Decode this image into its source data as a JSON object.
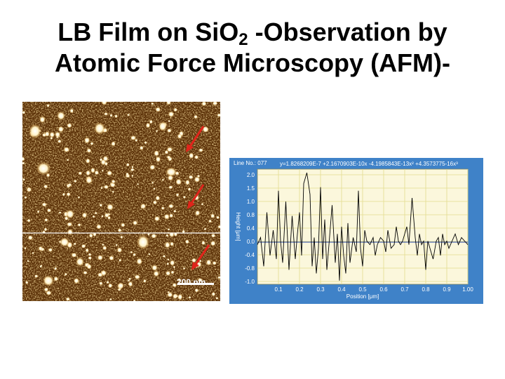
{
  "title": {
    "line1_pre": "LB Film on SiO",
    "line1_sub": "2",
    "line1_post": " -Observation by",
    "line2": "Atomic Force Microscopy (AFM)-"
  },
  "afm_image": {
    "scale_bar_label": "200 nm",
    "arrow_color": "#e0241b"
  },
  "chart_data": {
    "type": "line",
    "title": "Line No.: 077",
    "fit_equation": "y=1.8268209E-7 +2.1670903E-10x -4.1985843E-13x² +4.3573775-16x³",
    "xlabel": "Position [μm]",
    "ylabel": "Height [μm]",
    "xlim": [
      0.0,
      1.0
    ],
    "ylim": [
      -1.0,
      2.2
    ],
    "x_ticks": [
      "0.1",
      "0.2",
      "0.3",
      "0.4",
      "0.5",
      "0.6",
      "0.7",
      "0.8",
      "0.9",
      "1.00"
    ],
    "y_ticks": [
      "2.0",
      "1.5",
      "1.0",
      "0.8",
      "0.4",
      "0.0",
      "-0.4",
      "-0.8",
      "-1.0"
    ],
    "series": [
      {
        "values_x": [
          0.0,
          0.015,
          0.03,
          0.045,
          0.06,
          0.075,
          0.09,
          0.1,
          0.11,
          0.12,
          0.135,
          0.15,
          0.165,
          0.18,
          0.19,
          0.2,
          0.21,
          0.22,
          0.235,
          0.25,
          0.26,
          0.27,
          0.28,
          0.29,
          0.3,
          0.31,
          0.32,
          0.33,
          0.34,
          0.355,
          0.37,
          0.38,
          0.39,
          0.4,
          0.41,
          0.42,
          0.43,
          0.44,
          0.455,
          0.47,
          0.48,
          0.49,
          0.5,
          0.51,
          0.52,
          0.535,
          0.55,
          0.56,
          0.57,
          0.585,
          0.6,
          0.61,
          0.62,
          0.635,
          0.65,
          0.66,
          0.67,
          0.68,
          0.69,
          0.7,
          0.71,
          0.72,
          0.735,
          0.75,
          0.76,
          0.77,
          0.78,
          0.79,
          0.8,
          0.81,
          0.82,
          0.835,
          0.85,
          0.86,
          0.87,
          0.88,
          0.89,
          0.9,
          0.91,
          0.925,
          0.94,
          0.955,
          0.97,
          0.985,
          1.0
        ],
        "values_y": [
          0.1,
          0.3,
          -0.5,
          1.0,
          -0.2,
          0.5,
          -0.3,
          1.6,
          0.2,
          -0.4,
          1.3,
          -0.6,
          0.9,
          -0.3,
          0.4,
          1.0,
          -0.2,
          1.8,
          2.1,
          1.5,
          -0.5,
          0.3,
          -0.7,
          0.0,
          1.7,
          -0.3,
          0.8,
          -0.6,
          0.1,
          1.2,
          -0.4,
          0.4,
          -0.9,
          0.6,
          -0.2,
          -0.7,
          0.7,
          -0.4,
          0.3,
          -0.1,
          1.6,
          0.0,
          -0.5,
          0.5,
          0.2,
          0.1,
          0.3,
          -0.2,
          0.1,
          0.3,
          0.2,
          -0.1,
          0.5,
          0.0,
          0.1,
          0.6,
          0.2,
          0.1,
          0.2,
          0.4,
          0.6,
          0.1,
          1.4,
          0.3,
          -0.2,
          0.4,
          0.1,
          0.2,
          -0.6,
          0.2,
          0.0,
          -0.3,
          0.2,
          0.3,
          -0.2,
          0.4,
          0.1,
          0.2,
          0.0,
          0.2,
          0.4,
          0.1,
          0.3,
          0.2,
          0.1
        ]
      }
    ]
  }
}
